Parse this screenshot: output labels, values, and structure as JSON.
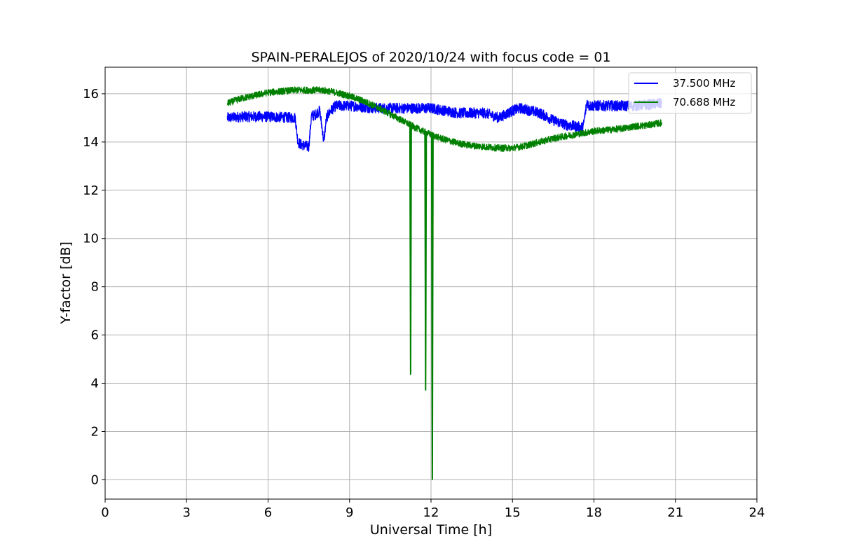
{
  "chart_data": {
    "type": "line",
    "title": "SPAIN-PERALEJOS of 2020/10/24 with focus code = 01",
    "xlabel": "Universal Time [h]",
    "ylabel": "Y-factor [dB]",
    "xlim": [
      0,
      24
    ],
    "ylim": [
      -0.8,
      17.1
    ],
    "xticks": [
      0,
      3,
      6,
      9,
      12,
      15,
      18,
      21,
      24
    ],
    "xtick_labels": [
      "0",
      "3",
      "6",
      "9",
      "12",
      "15",
      "18",
      "21",
      "24"
    ],
    "yticks": [
      0,
      2,
      4,
      6,
      8,
      10,
      12,
      14,
      16
    ],
    "ytick_labels": [
      "0",
      "2",
      "4",
      "6",
      "8",
      "10",
      "12",
      "14",
      "16"
    ],
    "grid": true,
    "legend_position": "top-right",
    "series": [
      {
        "name": "37.500 MHz",
        "color": "#0000ff",
        "noise": 0.22,
        "x": [
          4.5,
          5.0,
          6.0,
          7.0,
          7.1,
          7.2,
          7.5,
          7.6,
          7.7,
          7.9,
          8.0,
          8.05,
          8.15,
          8.3,
          8.5,
          9.0,
          10.0,
          11.0,
          12.0,
          13.0,
          14.0,
          14.5,
          15.0,
          15.3,
          16.0,
          16.5,
          17.0,
          17.6,
          17.75,
          17.8,
          18.5,
          19.5,
          20.5
        ],
        "y": [
          15.0,
          15.05,
          15.05,
          15.0,
          14.0,
          13.9,
          13.8,
          15.1,
          15.1,
          15.3,
          14.5,
          14.0,
          15.0,
          15.3,
          15.5,
          15.5,
          15.4,
          15.4,
          15.4,
          15.2,
          15.2,
          15.0,
          15.3,
          15.4,
          15.2,
          14.9,
          14.7,
          14.6,
          15.7,
          15.5,
          15.5,
          15.5,
          15.6
        ]
      },
      {
        "name": "70.688 MHz",
        "color": "#008000",
        "noise": 0.14,
        "x": [
          4.5,
          5.0,
          6.0,
          7.0,
          8.0,
          8.5,
          9.0,
          9.5,
          10.0,
          10.5,
          11.0,
          11.5,
          12.0,
          12.5,
          13.0,
          13.5,
          14.0,
          14.5,
          15.0,
          15.5,
          16.0,
          16.5,
          17.0,
          17.5,
          18.0,
          18.5,
          19.0,
          19.5,
          20.0,
          20.5
        ],
        "y": [
          15.6,
          15.8,
          16.05,
          16.15,
          16.15,
          16.05,
          15.9,
          15.7,
          15.45,
          15.15,
          14.85,
          14.55,
          14.3,
          14.1,
          13.95,
          13.85,
          13.8,
          13.75,
          13.75,
          13.85,
          14.0,
          14.15,
          14.25,
          14.35,
          14.45,
          14.5,
          14.55,
          14.65,
          14.7,
          14.8
        ]
      }
    ],
    "spikes": [
      {
        "series": "70.688 MHz",
        "x": 11.25,
        "y_min": 4.35
      },
      {
        "series": "70.688 MHz",
        "x": 11.8,
        "y_min": 3.7
      },
      {
        "series": "70.688 MHz",
        "x": 12.05,
        "y_min": 0.0
      }
    ]
  }
}
